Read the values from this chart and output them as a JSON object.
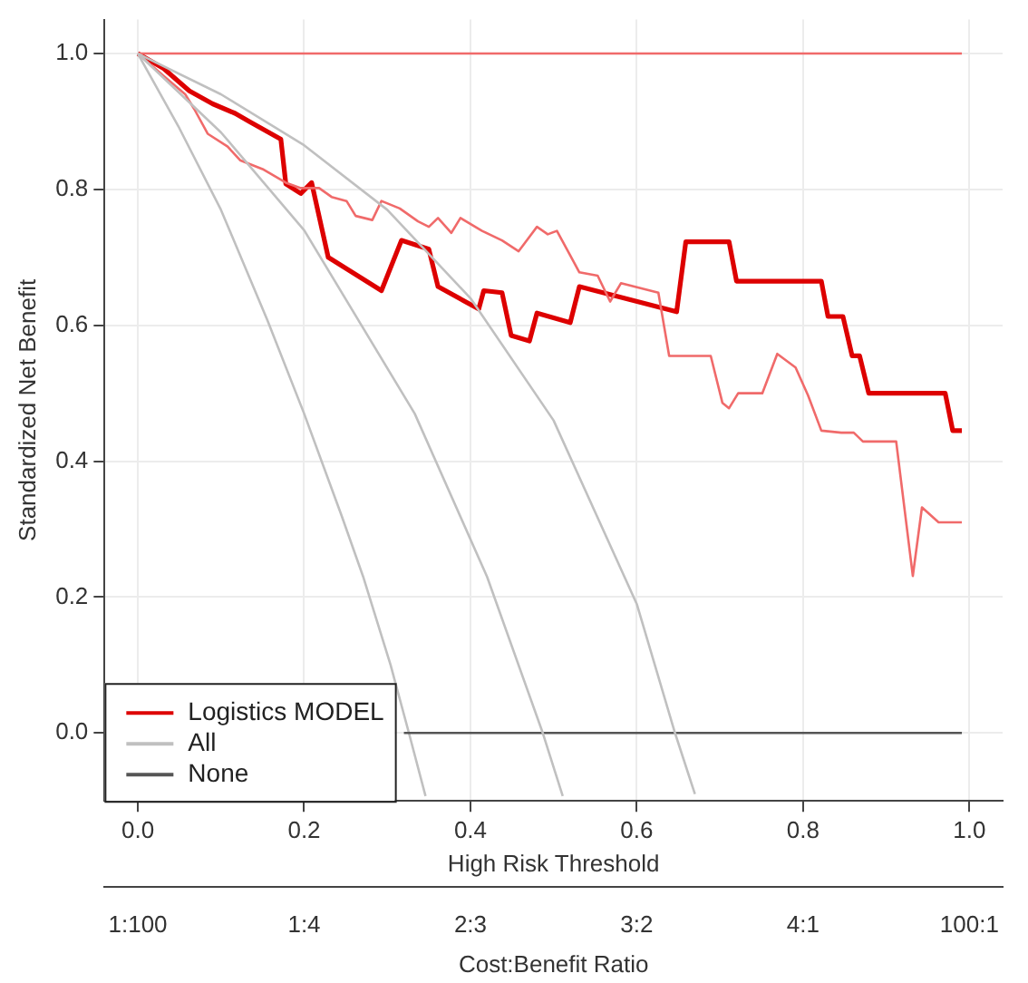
{
  "chart_data": {
    "type": "line",
    "xlabel": "High Risk Threshold",
    "ylabel": "Standardized Net Benefit",
    "x2label": "Cost:Benefit Ratio",
    "xlim": [
      -0.04,
      1.04
    ],
    "xticks": [
      {
        "value": 0,
        "label": "0.0"
      },
      0.2,
      0.4,
      0.6,
      0.8,
      {
        "value": 1,
        "label": "1.0"
      }
    ],
    "annotations": [
      "1:100",
      "1:4",
      "2:3",
      "3:2",
      "4:1",
      "100:1"
    ],
    "ylim": [
      -0.1,
      1.05
    ],
    "yticks": [
      {
        "value": 0,
        "label": "0.0"
      },
      0.2,
      0.4,
      0.6,
      0.8,
      {
        "value": 1,
        "label": "1.0"
      }
    ],
    "grid": true,
    "legend": "bottom left",
    "marker": "none",
    "line_style": "solid",
    "series": [
      {
        "name": "Logistics MODEL",
        "color": "#dd0000",
        "x": [
          0,
          0.031,
          0.062,
          0.09,
          0.117,
          0.134,
          0.172,
          0.178,
          0.196,
          0.209,
          0.229,
          0.293,
          0.317,
          0.35,
          0.361,
          0.41,
          0.416,
          0.438,
          0.449,
          0.471,
          0.48,
          0.52,
          0.531,
          0.648,
          0.659,
          0.711,
          0.72,
          0.822,
          0.83,
          0.848,
          0.859,
          0.868,
          0.879,
          0.971,
          0.98,
          0.991
        ],
        "values": [
          1,
          0.978,
          0.945,
          0.926,
          0.912,
          0.9,
          0.874,
          0.808,
          0.794,
          0.81,
          0.7,
          0.651,
          0.725,
          0.712,
          0.657,
          0.624,
          0.651,
          0.648,
          0.585,
          0.577,
          0.618,
          0.604,
          0.657,
          0.62,
          0.723,
          0.723,
          0.665,
          0.665,
          0.613,
          0.613,
          0.555,
          0.555,
          0.5,
          0.5,
          0.445,
          0.445
        ]
      },
      {
        "name": "All",
        "color": "#c0c0c0",
        "x": [
          0,
          0.05,
          0.1,
          0.156,
          0.2,
          0.245,
          0.271,
          0.304,
          0.326,
          0.346
        ],
        "values": [
          1,
          0.89,
          0.77,
          0.607,
          0.47,
          0.32,
          0.23,
          0.1,
          0,
          -0.093
        ]
      },
      {
        "name": "None",
        "color": "#555555",
        "x": [
          0.32,
          0.991
        ],
        "values": [
          0,
          0
        ]
      },
      {
        "color": "#f06a6a",
        "x": [
          0,
          0.031,
          0.057,
          0.068,
          0.084,
          0.108,
          0.123,
          0.15,
          0.178,
          0.196,
          0.218,
          0.233,
          0.251,
          0.262,
          0.282,
          0.293,
          0.315,
          0.337,
          0.35,
          0.361,
          0.377,
          0.388,
          0.414,
          0.438,
          0.458,
          0.48,
          0.493,
          0.504,
          0.52,
          0.531,
          0.553,
          0.568,
          0.581,
          0.626,
          0.639,
          0.689,
          0.703,
          0.711,
          0.722,
          0.751,
          0.769,
          0.791,
          0.806,
          0.822,
          0.846,
          0.861,
          0.872,
          0.912,
          0.932,
          0.943,
          0.963,
          0.991
        ],
        "values": [
          1,
          0.967,
          0.94,
          0.918,
          0.882,
          0.863,
          0.843,
          0.83,
          0.81,
          0.802,
          0.802,
          0.789,
          0.783,
          0.761,
          0.755,
          0.783,
          0.772,
          0.753,
          0.745,
          0.758,
          0.736,
          0.758,
          0.739,
          0.725,
          0.709,
          0.745,
          0.734,
          0.739,
          0.703,
          0.678,
          0.673,
          0.635,
          0.662,
          0.648,
          0.555,
          0.555,
          0.486,
          0.478,
          0.5,
          0.5,
          0.558,
          0.538,
          0.497,
          0.445,
          0.442,
          0.442,
          0.429,
          0.429,
          0.231,
          0.332,
          0.31,
          0.31
        ]
      },
      {
        "color": "#f06a6a",
        "x": [
          0,
          0.991
        ],
        "values": [
          1,
          1
        ]
      },
      {
        "color": "#c0c0c0",
        "x": [
          0,
          0.1,
          0.2,
          0.333,
          0.42,
          0.487,
          0.511
        ],
        "values": [
          1,
          0.884,
          0.74,
          0.47,
          0.23,
          0,
          -0.093
        ]
      },
      {
        "color": "#c0c0c0",
        "x": [
          0,
          0.1,
          0.2,
          0.3,
          0.4,
          0.5,
          0.6,
          0.646,
          0.67
        ],
        "values": [
          1,
          0.94,
          0.865,
          0.77,
          0.64,
          0.46,
          0.19,
          0,
          -0.09
        ]
      }
    ]
  }
}
